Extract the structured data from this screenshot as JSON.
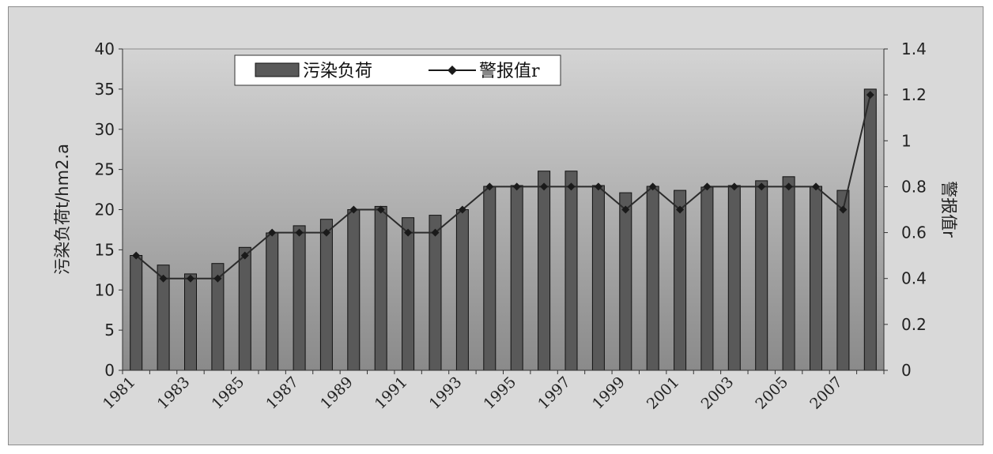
{
  "chart_data": {
    "type": "bar",
    "categories": [
      "1981",
      "1982",
      "1983",
      "1984",
      "1985",
      "1986",
      "1987",
      "1988",
      "1989",
      "1990",
      "1991",
      "1992",
      "1993",
      "1994",
      "1995",
      "1996",
      "1997",
      "1998",
      "1999",
      "2000",
      "2001",
      "2002",
      "2003",
      "2004",
      "2005",
      "2006",
      "2007",
      "2008"
    ],
    "x_tick_labels": [
      "1981",
      "1983",
      "1985",
      "1987",
      "1989",
      "1991",
      "1993",
      "1995",
      "1997",
      "1999",
      "2001",
      "2003",
      "2005",
      "2007"
    ],
    "series": [
      {
        "name": "污染负荷",
        "kind": "bar",
        "axis": "left",
        "color": "#595959",
        "values": [
          14.3,
          13.1,
          12.0,
          13.3,
          15.3,
          17.1,
          18.0,
          18.8,
          20.0,
          20.4,
          19.0,
          19.3,
          20.0,
          22.9,
          23.0,
          24.8,
          24.8,
          23.0,
          22.1,
          22.9,
          22.4,
          22.8,
          23.0,
          23.6,
          24.1,
          22.9,
          22.4,
          35.0
        ]
      },
      {
        "name": "警报值r",
        "kind": "line",
        "axis": "right",
        "color": "#2b2b2b",
        "marker": "diamond",
        "values": [
          0.5,
          0.4,
          0.4,
          0.4,
          0.5,
          0.6,
          0.6,
          0.6,
          0.7,
          0.7,
          0.6,
          0.6,
          0.7,
          0.8,
          0.8,
          0.8,
          0.8,
          0.8,
          0.7,
          0.8,
          0.7,
          0.8,
          0.8,
          0.8,
          0.8,
          0.8,
          0.7,
          1.2
        ]
      }
    ],
    "ylabel": "污染负荷t/hm2.a",
    "y2label": "警报值r",
    "ylim": [
      0,
      40
    ],
    "y_ticks": [
      0,
      5,
      10,
      15,
      20,
      25,
      30,
      35,
      40
    ],
    "y2lim": [
      0,
      1.4
    ],
    "y2_ticks": [
      "0",
      "0.2",
      "0.4",
      "0.6",
      "0.8",
      "1",
      "1.2",
      "1.4"
    ],
    "legend_position": "top-left",
    "grid": false
  }
}
